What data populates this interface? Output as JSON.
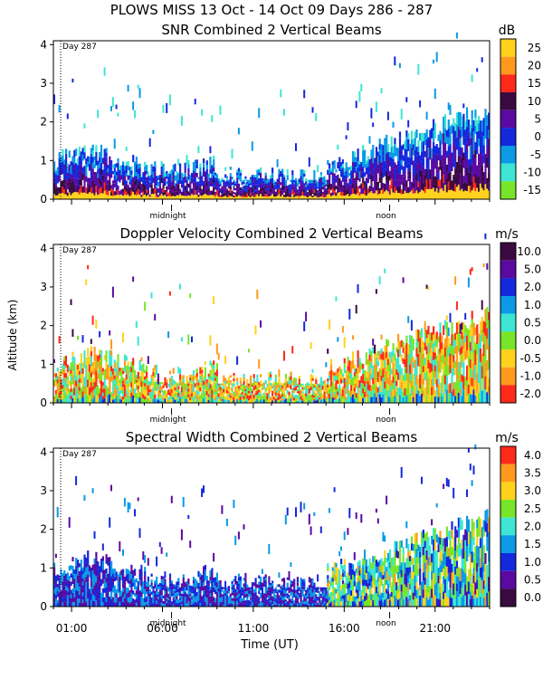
{
  "figure": {
    "title": "PLOWS MISS  13 Oct - 14 Oct 09 Days 286 - 287",
    "ylabel": "Altitude (km)",
    "xlabel": "Time (UT)",
    "day_marker": "Day 287",
    "midnight_label": "midnight",
    "noon_label": "noon",
    "time_ticks": [
      "01:00",
      "06:00",
      "11:00",
      "16:00",
      "21:00"
    ]
  },
  "chart_data": [
    {
      "type": "heatmap",
      "title": "SNR Combined 2 Vertical Beams",
      "xlabel": "Time (UT)",
      "ylabel": "Altitude (km)",
      "yticks": [
        "0",
        "1",
        "2",
        "3",
        "4"
      ],
      "ylim": [
        0,
        4.1
      ],
      "xlim_hours": [
        0,
        24
      ],
      "colorbar": {
        "unit": "dB",
        "labels": [
          "25",
          "20",
          "15",
          "10",
          "5",
          "0",
          "-5",
          "-10",
          "-15"
        ],
        "colors": [
          "#ffd21e",
          "#ff9a1e",
          "#ff2a1a",
          "#3a0a40",
          "#5a0aa0",
          "#1428dc",
          "#0a9ae6",
          "#3ce6d2",
          "#78e628"
        ]
      },
      "description_values": {
        "dominant_low_altitude_km": [
          0,
          1.2
        ],
        "peak_altitude_km": 3.4
      }
    },
    {
      "type": "heatmap",
      "title": "Doppler Velocity Combined 2 Vertical Beams",
      "xlabel": "Time (UT)",
      "ylabel": "Altitude (km)",
      "yticks": [
        "0",
        "1",
        "2",
        "3",
        "4"
      ],
      "ylim": [
        0,
        4.1
      ],
      "xlim_hours": [
        0,
        24
      ],
      "colorbar": {
        "unit": "m/s",
        "labels": [
          "10.0",
          "5.0",
          "2.0",
          "1.0",
          "0.5",
          "0.0",
          "-0.5",
          "-1.0",
          "-2.0"
        ],
        "colors": [
          "#3a0a40",
          "#5a0aa0",
          "#1428dc",
          "#0a9ae6",
          "#3ce6d2",
          "#78e628",
          "#ffd21e",
          "#ff9a1e",
          "#ff2a1a"
        ]
      }
    },
    {
      "type": "heatmap",
      "title": "Spectral Width Combined 2 Vertical Beams",
      "xlabel": "Time (UT)",
      "ylabel": "Altitude (km)",
      "yticks": [
        "0",
        "1",
        "2",
        "3",
        "4"
      ],
      "ylim": [
        0,
        4.1
      ],
      "xlim_hours": [
        0,
        24
      ],
      "colorbar": {
        "unit": "m/s",
        "labels": [
          "4.0",
          "3.5",
          "3.0",
          "2.5",
          "2.0",
          "1.5",
          "1.0",
          "0.5",
          "0.0"
        ],
        "colors": [
          "#ff2a1a",
          "#ff9a1e",
          "#ffd21e",
          "#78e628",
          "#3ce6d2",
          "#0a9ae6",
          "#1428dc",
          "#5a0aa0",
          "#3a0a40"
        ]
      }
    }
  ]
}
